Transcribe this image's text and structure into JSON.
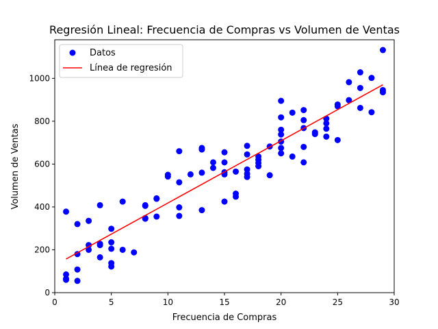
{
  "chart_data": {
    "type": "scatter",
    "title": "Regresión Lineal: Frecuencia de Compras vs Volumen de Ventas",
    "xlabel": "Frecuencia de Compras",
    "ylabel": "Volumen de Ventas",
    "xlim": [
      0,
      30
    ],
    "ylim": [
      0,
      1180
    ],
    "xticks": [
      0,
      5,
      10,
      15,
      20,
      25,
      30
    ],
    "yticks": [
      0,
      200,
      400,
      600,
      800,
      1000
    ],
    "grid": false,
    "legend_position": "top-left",
    "series": [
      {
        "name": "Datos",
        "kind": "scatter",
        "color": "#0000ff",
        "points": [
          [
            1,
            378
          ],
          [
            1,
            85
          ],
          [
            1,
            65
          ],
          [
            1,
            60
          ],
          [
            2,
            320
          ],
          [
            2,
            180
          ],
          [
            2,
            108
          ],
          [
            2,
            55
          ],
          [
            3,
            335
          ],
          [
            3,
            222
          ],
          [
            3,
            200
          ],
          [
            4,
            408
          ],
          [
            4,
            228
          ],
          [
            4,
            222
          ],
          [
            4,
            165
          ],
          [
            5,
            298
          ],
          [
            5,
            235
          ],
          [
            5,
            205
          ],
          [
            5,
            138
          ],
          [
            5,
            122
          ],
          [
            6,
            425
          ],
          [
            6,
            200
          ],
          [
            7,
            188
          ],
          [
            8,
            408
          ],
          [
            8,
            405
          ],
          [
            8,
            348
          ],
          [
            8,
            345
          ],
          [
            9,
            440
          ],
          [
            9,
            438
          ],
          [
            9,
            355
          ],
          [
            10,
            550
          ],
          [
            10,
            542
          ],
          [
            11,
            660
          ],
          [
            11,
            515
          ],
          [
            11,
            398
          ],
          [
            11,
            358
          ],
          [
            12,
            552
          ],
          [
            13,
            675
          ],
          [
            13,
            668
          ],
          [
            13,
            560
          ],
          [
            13,
            385
          ],
          [
            14,
            608
          ],
          [
            14,
            582
          ],
          [
            15,
            655
          ],
          [
            15,
            608
          ],
          [
            15,
            562
          ],
          [
            15,
            552
          ],
          [
            15,
            425
          ],
          [
            16,
            565
          ],
          [
            16,
            462
          ],
          [
            16,
            448
          ],
          [
            17,
            685
          ],
          [
            17,
            645
          ],
          [
            17,
            575
          ],
          [
            17,
            555
          ],
          [
            17,
            540
          ],
          [
            18,
            635
          ],
          [
            18,
            620
          ],
          [
            18,
            605
          ],
          [
            18,
            590
          ],
          [
            19,
            682
          ],
          [
            19,
            548
          ],
          [
            20,
            895
          ],
          [
            20,
            818
          ],
          [
            20,
            760
          ],
          [
            20,
            738
          ],
          [
            20,
            705
          ],
          [
            20,
            675
          ],
          [
            20,
            650
          ],
          [
            21,
            840
          ],
          [
            21,
            635
          ],
          [
            22,
            852
          ],
          [
            22,
            805
          ],
          [
            22,
            768
          ],
          [
            22,
            680
          ],
          [
            22,
            608
          ],
          [
            23,
            748
          ],
          [
            23,
            740
          ],
          [
            24,
            812
          ],
          [
            24,
            790
          ],
          [
            24,
            765
          ],
          [
            24,
            728
          ],
          [
            25,
            878
          ],
          [
            25,
            870
          ],
          [
            25,
            712
          ],
          [
            26,
            982
          ],
          [
            26,
            898
          ],
          [
            27,
            1028
          ],
          [
            27,
            955
          ],
          [
            27,
            862
          ],
          [
            28,
            1002
          ],
          [
            28,
            842
          ],
          [
            29,
            1132
          ],
          [
            29,
            945
          ],
          [
            29,
            935
          ]
        ]
      },
      {
        "name": "Línea de regresión",
        "kind": "line",
        "color": "#ff0000",
        "points": [
          [
            1,
            157
          ],
          [
            29,
            970
          ]
        ]
      }
    ]
  }
}
